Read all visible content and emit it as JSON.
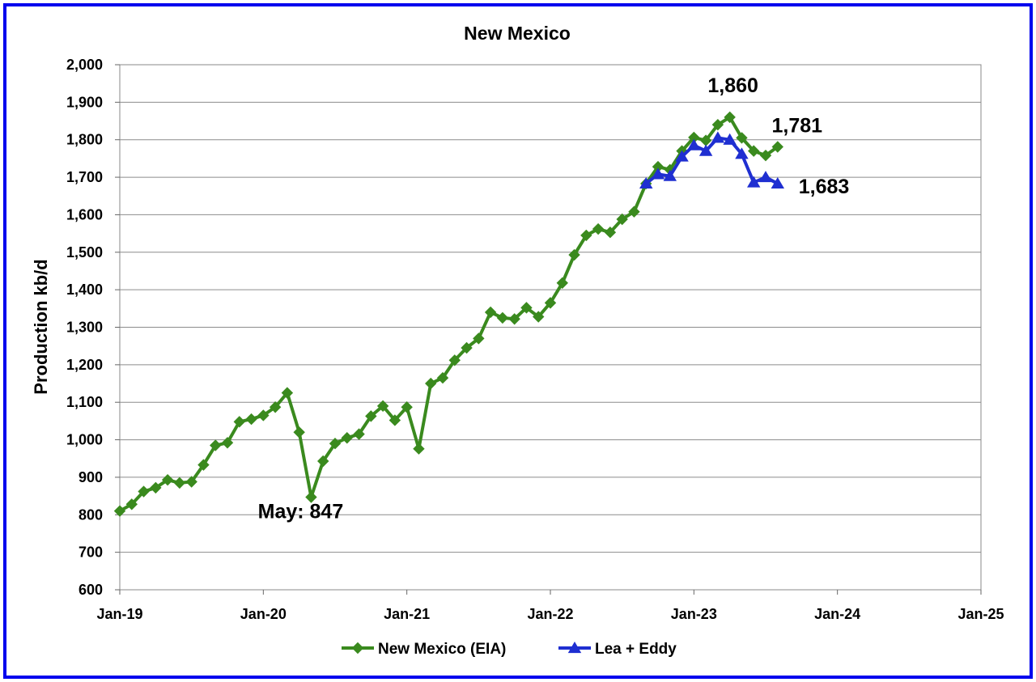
{
  "chart_data": {
    "type": "line",
    "title": "New Mexico",
    "xlabel": "",
    "ylabel": "Production kb/d",
    "ylim": [
      600,
      2000
    ],
    "y_ticks": [
      600,
      700,
      800,
      900,
      1000,
      1100,
      1200,
      1300,
      1400,
      1500,
      1600,
      1700,
      1800,
      1900,
      2000
    ],
    "y_tick_labels": [
      "600",
      "700",
      "800",
      "900",
      "1,000",
      "1,100",
      "1,200",
      "1,300",
      "1,400",
      "1,500",
      "1,600",
      "1,700",
      "1,800",
      "1,900",
      "2,000"
    ],
    "x_ticks": [
      "Jan-19",
      "Jan-20",
      "Jan-21",
      "Jan-22",
      "Jan-23",
      "Jan-24",
      "Jan-25"
    ],
    "x_range": [
      "2019-01",
      "2025-01"
    ],
    "grid": "horizontal",
    "legend_position": "bottom",
    "series": [
      {
        "name": "New Mexico (EIA)",
        "color": "#3a8a1e",
        "marker": "diamond",
        "start": "2019-01",
        "values": [
          810,
          828,
          862,
          872,
          893,
          885,
          888,
          933,
          985,
          992,
          1048,
          1055,
          1065,
          1087,
          1125,
          1020,
          847,
          943,
          990,
          1005,
          1015,
          1063,
          1090,
          1052,
          1087,
          976,
          1150,
          1165,
          1212,
          1245,
          1270,
          1340,
          1325,
          1322,
          1352,
          1328,
          1365,
          1418,
          1493,
          1545,
          1562,
          1553,
          1588,
          1608,
          1683,
          1728,
          1720,
          1770,
          1806,
          1798,
          1840,
          1860,
          1805,
          1770,
          1758,
          1781
        ]
      },
      {
        "name": "Lea + Eddy",
        "color": "#1f2fd1",
        "marker": "triangle",
        "start": "2022-09",
        "values": [
          1683,
          1708,
          1703,
          1755,
          1785,
          1770,
          1805,
          1800,
          1762,
          1686,
          1700,
          1683
        ]
      }
    ],
    "annotations": [
      {
        "text": "May: 847",
        "series": 0,
        "index": 16
      },
      {
        "text": "1,860",
        "series": 0,
        "index": 51
      },
      {
        "text": "1,781",
        "series": 0,
        "index": 55
      },
      {
        "text": "1,683",
        "series": 1,
        "index": 11
      }
    ]
  }
}
